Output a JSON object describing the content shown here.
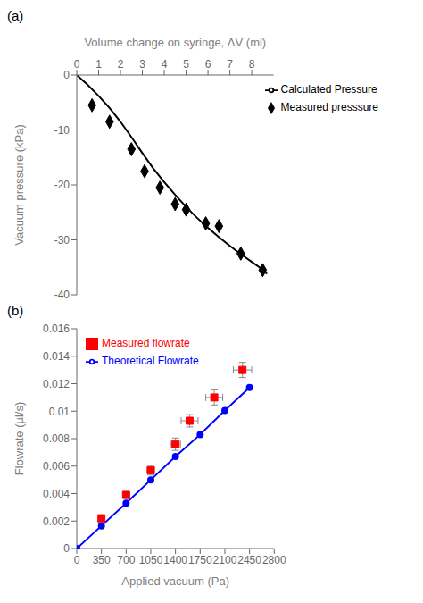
{
  "chart_data": [
    {
      "type": "line",
      "title": "(a)",
      "xlabel": "Volume change on syringe, ΔV (ml)",
      "ylabel": "Vacuum pressure (kPa)",
      "xlim": [
        0,
        9
      ],
      "ylim": [
        -40,
        0
      ],
      "xticks": [
        0,
        1,
        2,
        3,
        4,
        5,
        6,
        7,
        8
      ],
      "yticks": [
        0,
        -10,
        -20,
        -30,
        -40
      ],
      "grid": false,
      "legend": "upper right",
      "series": [
        {
          "name": "Calculated Pressure",
          "type": "line",
          "color": "black",
          "x": [
            0.0,
            0.5,
            1.0,
            1.5,
            2.0,
            2.5,
            3.0,
            3.5,
            4.0,
            4.5,
            5.0,
            5.5,
            6.0,
            6.5,
            7.0,
            7.5,
            8.0,
            8.5,
            8.7
          ],
          "values": [
            0.0,
            -1.8,
            -3.8,
            -6.0,
            -8.5,
            -11.3,
            -14.2,
            -17.0,
            -19.5,
            -21.8,
            -24.0,
            -26.0,
            -27.8,
            -29.5,
            -31.1,
            -32.6,
            -34.0,
            -35.4,
            -36.2
          ]
        },
        {
          "name": "Measured presssure",
          "type": "scatter",
          "marker": "diamond",
          "color": "black",
          "x": [
            0.7,
            1.5,
            2.5,
            3.1,
            3.8,
            4.5,
            5.0,
            5.9,
            6.5,
            7.5,
            8.5
          ],
          "values": [
            -5.5,
            -8.5,
            -13.5,
            -17.5,
            -20.5,
            -23.5,
            -24.5,
            -27.0,
            -27.5,
            -32.5,
            -35.5
          ]
        }
      ]
    },
    {
      "type": "line",
      "title": "(b)",
      "xlabel": "Applied vacuum (Pa)",
      "ylabel": "Flowrate (µl/s)",
      "xlim": [
        0,
        2800
      ],
      "ylim": [
        0,
        0.016
      ],
      "xticks": [
        0,
        350,
        700,
        1050,
        1400,
        1750,
        2100,
        2450,
        2800
      ],
      "yticks": [
        0,
        0.002,
        0.004,
        0.006,
        0.008,
        0.01,
        0.012,
        0.014,
        0.016
      ],
      "grid": false,
      "legend": "upper left",
      "series": [
        {
          "name": "Theoretical Flowrate",
          "type": "line",
          "marker": "circle",
          "color": "blue",
          "x": [
            0,
            350,
            700,
            1050,
            1400,
            1750,
            2100,
            2450
          ],
          "values": [
            0,
            0.00165,
            0.0033,
            0.005,
            0.0067,
            0.0083,
            0.01005,
            0.01172
          ]
        },
        {
          "name": "Measured flowrate",
          "type": "scatter",
          "marker": "square",
          "color": "red",
          "x": [
            350,
            700,
            1050,
            1400,
            1600,
            1950,
            2350
          ],
          "values": [
            0.0022,
            0.0039,
            0.0057,
            0.0076,
            0.0093,
            0.011,
            0.013
          ],
          "xerr": [
            30,
            30,
            50,
            70,
            120,
            120,
            130
          ],
          "yerr": [
            0.00025,
            0.00025,
            0.00035,
            0.00045,
            0.00045,
            0.00055,
            0.00055
          ]
        }
      ]
    }
  ]
}
